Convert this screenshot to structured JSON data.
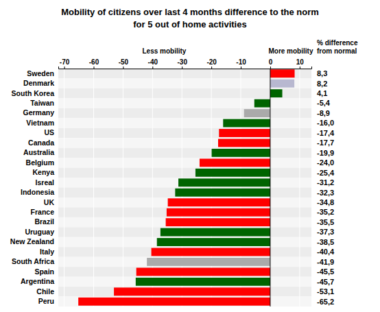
{
  "chart_data": {
    "type": "bar",
    "orientation": "horizontal",
    "title": "Mobility of citizens over last 4 months difference to the norm",
    "subtitle": "for 5 out of home activities",
    "annotations": [
      "Less mobility",
      "More mobility",
      "% difference",
      "from normal"
    ],
    "categories": [
      "Sweden",
      "Denmark",
      "South Korea",
      "Taiwan",
      "Germany",
      "Vietnam",
      "US",
      "Canada",
      "Australia",
      "Belgium",
      "Kenya",
      "Isreal",
      "Indonesia",
      "UK",
      "France",
      "Brazil",
      "Uruguay",
      "New Zealand",
      "Italy",
      "South Africa",
      "Spain",
      "Argentina",
      "Chile",
      "Peru"
    ],
    "values": [
      8.3,
      8.2,
      4.1,
      -5.4,
      -8.9,
      -16.0,
      -17.4,
      -17.7,
      -19.9,
      -24.0,
      -25.4,
      -31.2,
      -32.3,
      -34.8,
      -35.2,
      -35.5,
      -37.3,
      -38.5,
      -40.4,
      -41.9,
      -45.5,
      -45.7,
      -53.1,
      -65.2
    ],
    "value_labels": [
      "8,3",
      "8,2",
      "4,1",
      "-5,4",
      "-8,9",
      "-16,0",
      "-17,4",
      "-17,7",
      "-19,9",
      "-24,0",
      "-25,4",
      "-31,2",
      "-32,3",
      "-34,8",
      "-35,2",
      "-35,5",
      "-37,3",
      "-38,5",
      "-40,4",
      "-41,9",
      "-45,5",
      "-45,7",
      "-53,1",
      "-65,2"
    ],
    "data_labels": true,
    "colors": [
      "#ff0000",
      "#b8b8d0",
      "#006400",
      "#006400",
      "#aaaaaa",
      "#006400",
      "#ff0000",
      "#ff0000",
      "#006400",
      "#ff0000",
      "#006400",
      "#006400",
      "#006400",
      "#ff0000",
      "#ff0000",
      "#ff0000",
      "#006400",
      "#006400",
      "#ff0000",
      "#aaaaaa",
      "#ff0000",
      "#006400",
      "#ff0000",
      "#ff0000"
    ],
    "xlim": [
      -72,
      14
    ],
    "xticks": [
      -70,
      -60,
      -50,
      -40,
      -30,
      -20,
      -10,
      0,
      10
    ],
    "grid": true
  }
}
